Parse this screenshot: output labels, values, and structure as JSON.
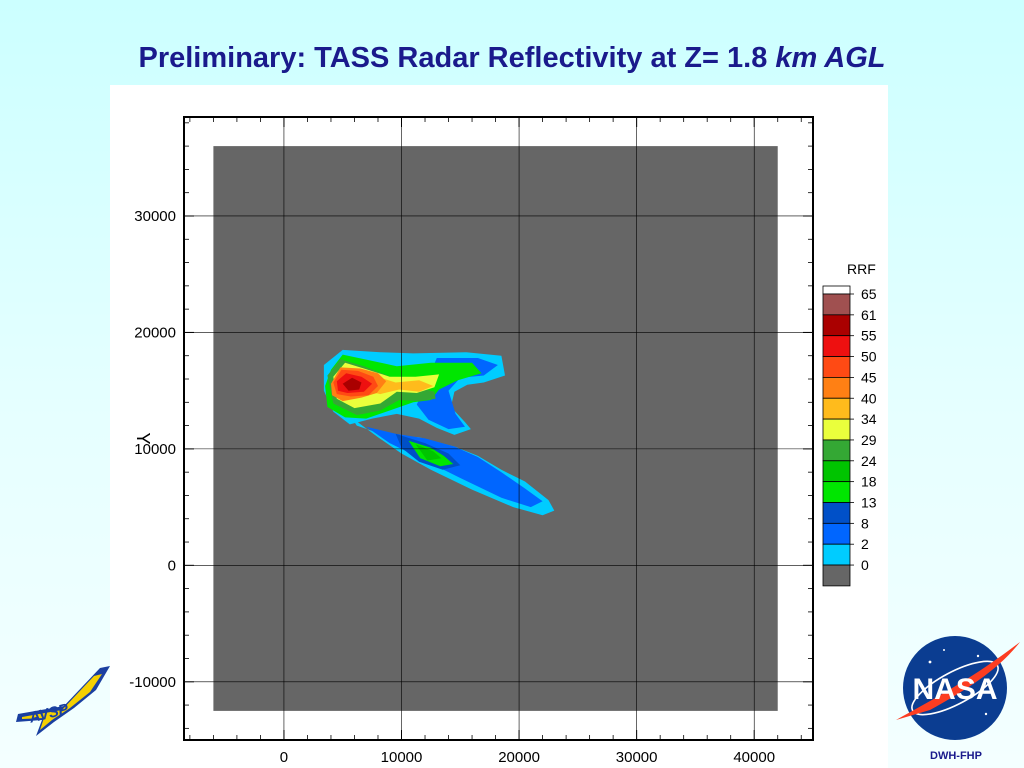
{
  "slide": {
    "title_main": "Preliminary:  TASS Radar Reflectivity at Z= 1.8 ",
    "title_italic": "km AGL",
    "footer_caption": "DWH-FHP"
  },
  "logos": {
    "left_logo": "AVSP",
    "right_logo": "NASA"
  },
  "chart_data": {
    "type": "contour",
    "title": "",
    "xlabel": "",
    "ylabel": "Y",
    "xlim": [
      -8500,
      45000
    ],
    "ylim": [
      -15000,
      38500
    ],
    "xticks": [
      0,
      10000,
      20000,
      30000,
      40000
    ],
    "yticks": [
      -10000,
      0,
      10000,
      20000,
      30000
    ],
    "domain": {
      "x": [
        -6000,
        42000
      ],
      "y": [
        -12500,
        36000
      ]
    },
    "legend_title": "RRF",
    "legend_position": "right",
    "levels": [
      {
        "value": 0,
        "color": "#666666"
      },
      {
        "value": 2,
        "color": "#00ccff"
      },
      {
        "value": 8,
        "color": "#0066ff"
      },
      {
        "value": 13,
        "color": "#0050c8"
      },
      {
        "value": 18,
        "color": "#00e600"
      },
      {
        "value": 24,
        "color": "#00c400"
      },
      {
        "value": 29,
        "color": "#34a834"
      },
      {
        "value": 34,
        "color": "#eaff3c"
      },
      {
        "value": 40,
        "color": "#ffbb1c"
      },
      {
        "value": 45,
        "color": "#ff8014"
      },
      {
        "value": 50,
        "color": "#ff4a14"
      },
      {
        "value": 55,
        "color": "#ee1010"
      },
      {
        "value": 61,
        "color": "#aa0000"
      },
      {
        "value": 65,
        "color": "#a05050"
      }
    ],
    "legend_top_color": "#ffffff",
    "background_value": 0,
    "regions": [
      {
        "level": 2,
        "points": [
          [
            4800,
            14100
          ],
          [
            6200,
            12000
          ],
          [
            8500,
            11200
          ],
          [
            11500,
            11000
          ],
          [
            14500,
            10200
          ],
          [
            16500,
            9400
          ],
          [
            18500,
            8200
          ],
          [
            20500,
            7200
          ],
          [
            22500,
            5600
          ],
          [
            23000,
            4700
          ],
          [
            22000,
            4300
          ],
          [
            19500,
            5000
          ],
          [
            16000,
            6500
          ],
          [
            12500,
            8200
          ],
          [
            10000,
            9600
          ],
          [
            8000,
            11000
          ],
          [
            5200,
            13100
          ]
        ]
      },
      {
        "level": 2,
        "points": [
          [
            3400,
            15000
          ],
          [
            3400,
            17200
          ],
          [
            5000,
            18500
          ],
          [
            8200,
            18300
          ],
          [
            11000,
            18200
          ],
          [
            15500,
            18300
          ],
          [
            18500,
            18000
          ],
          [
            18800,
            16300
          ],
          [
            17000,
            15700
          ],
          [
            15600,
            15500
          ],
          [
            14500,
            14900
          ],
          [
            14200,
            13600
          ],
          [
            15400,
            12300
          ],
          [
            15900,
            11700
          ],
          [
            14500,
            11200
          ],
          [
            13000,
            11800
          ],
          [
            11500,
            12600
          ],
          [
            9600,
            13000
          ],
          [
            7500,
            12600
          ],
          [
            5600,
            12100
          ],
          [
            4200,
            13200
          ]
        ]
      },
      {
        "level": 8,
        "points": [
          [
            7000,
            11900
          ],
          [
            9500,
            11300
          ],
          [
            12000,
            10900
          ],
          [
            14500,
            10200
          ],
          [
            16500,
            9300
          ],
          [
            18500,
            8000
          ],
          [
            20500,
            6600
          ],
          [
            22000,
            5500
          ],
          [
            21000,
            5000
          ],
          [
            18500,
            5800
          ],
          [
            15000,
            7500
          ],
          [
            12000,
            9000
          ],
          [
            9000,
            10500
          ]
        ]
      },
      {
        "level": 8,
        "points": [
          [
            13000,
            17800
          ],
          [
            16500,
            17800
          ],
          [
            18200,
            17200
          ],
          [
            17000,
            16300
          ],
          [
            15000,
            16100
          ],
          [
            14000,
            15000
          ],
          [
            14600,
            13000
          ],
          [
            15400,
            11900
          ],
          [
            14000,
            11700
          ],
          [
            12300,
            12500
          ],
          [
            11300,
            13800
          ]
        ]
      },
      {
        "level": 13,
        "points": [
          [
            9500,
            11300
          ],
          [
            12000,
            10500
          ],
          [
            14000,
            9600
          ],
          [
            15000,
            8600
          ],
          [
            13500,
            8200
          ],
          [
            11500,
            8900
          ],
          [
            10000,
            10100
          ]
        ]
      },
      {
        "level": 18,
        "points": [
          [
            4000,
            16800
          ],
          [
            5000,
            18100
          ],
          [
            7300,
            17600
          ],
          [
            9600,
            17100
          ],
          [
            12500,
            17400
          ],
          [
            16000,
            17400
          ],
          [
            16800,
            16500
          ],
          [
            14800,
            15900
          ],
          [
            13200,
            15100
          ],
          [
            12500,
            14200
          ],
          [
            11000,
            14000
          ],
          [
            9000,
            13300
          ],
          [
            7000,
            12600
          ],
          [
            5200,
            12700
          ],
          [
            3700,
            13600
          ],
          [
            3500,
            15400
          ]
        ]
      },
      {
        "level": 18,
        "points": [
          [
            10600,
            10700
          ],
          [
            12500,
            10100
          ],
          [
            13600,
            9400
          ],
          [
            14400,
            8700
          ],
          [
            13300,
            8500
          ],
          [
            11600,
            9200
          ]
        ]
      },
      {
        "level": 24,
        "points": [
          [
            11200,
            10400
          ],
          [
            12700,
            9800
          ],
          [
            13400,
            9200
          ],
          [
            12200,
            9000
          ]
        ]
      },
      {
        "level": 29,
        "points": [
          [
            3700,
            16300
          ],
          [
            4800,
            17700
          ],
          [
            6800,
            17100
          ],
          [
            8800,
            16300
          ],
          [
            10600,
            15500
          ],
          [
            12800,
            14900
          ],
          [
            12900,
            14300
          ],
          [
            11500,
            14100
          ],
          [
            9800,
            14200
          ],
          [
            8200,
            13300
          ],
          [
            6200,
            12900
          ],
          [
            4200,
            13900
          ]
        ]
      },
      {
        "level": 34,
        "points": [
          [
            4200,
            16200
          ],
          [
            5200,
            17400
          ],
          [
            6800,
            16900
          ],
          [
            9000,
            16200
          ],
          [
            11200,
            16200
          ],
          [
            13200,
            16400
          ],
          [
            12800,
            15300
          ],
          [
            11300,
            14800
          ],
          [
            9600,
            14900
          ],
          [
            8200,
            13900
          ],
          [
            6000,
            13500
          ],
          [
            4500,
            14300
          ]
        ]
      },
      {
        "level": 40,
        "points": [
          [
            5600,
            16200
          ],
          [
            7300,
            16400
          ],
          [
            9500,
            15700
          ],
          [
            11500,
            15900
          ],
          [
            12700,
            15400
          ],
          [
            11500,
            14900
          ],
          [
            9800,
            15100
          ],
          [
            8200,
            14700
          ],
          [
            7000,
            15000
          ]
        ]
      },
      {
        "level": 45,
        "points": [
          [
            4000,
            15600
          ],
          [
            4800,
            17000
          ],
          [
            6500,
            16900
          ],
          [
            8000,
            16500
          ],
          [
            8700,
            15800
          ],
          [
            7900,
            14800
          ],
          [
            6600,
            14400
          ],
          [
            5000,
            14100
          ],
          [
            4100,
            14600
          ]
        ]
      },
      {
        "level": 50,
        "points": [
          [
            4200,
            15700
          ],
          [
            4900,
            16800
          ],
          [
            6300,
            16700
          ],
          [
            7600,
            16200
          ],
          [
            8000,
            15400
          ],
          [
            7200,
            14600
          ],
          [
            5700,
            14500
          ],
          [
            4500,
            14700
          ]
        ]
      },
      {
        "level": 55,
        "points": [
          [
            4500,
            15800
          ],
          [
            5300,
            16500
          ],
          [
            6600,
            16200
          ],
          [
            7500,
            15600
          ],
          [
            6800,
            14900
          ],
          [
            5400,
            14800
          ],
          [
            4600,
            15000
          ]
        ]
      },
      {
        "level": 61,
        "points": [
          [
            5000,
            15600
          ],
          [
            5800,
            16100
          ],
          [
            6600,
            15700
          ],
          [
            6400,
            15100
          ],
          [
            5500,
            15000
          ]
        ]
      }
    ]
  }
}
